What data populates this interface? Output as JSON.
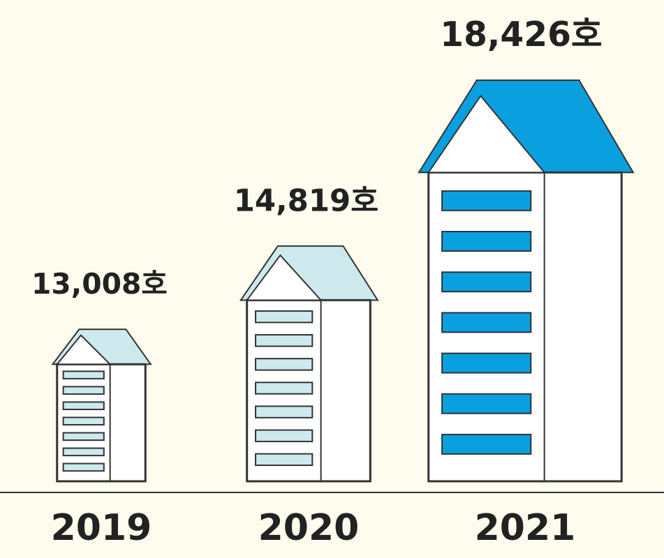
{
  "chart_data": {
    "type": "pictorial",
    "categories": [
      "2019",
      "2020",
      "2021"
    ],
    "values": [
      13008,
      14819,
      18426
    ],
    "value_labels": [
      "13,008호",
      "14,819호",
      "18,426호"
    ],
    "colors": [
      "#cde9ee",
      "#cde9ee",
      "#0aa0e0"
    ]
  }
}
